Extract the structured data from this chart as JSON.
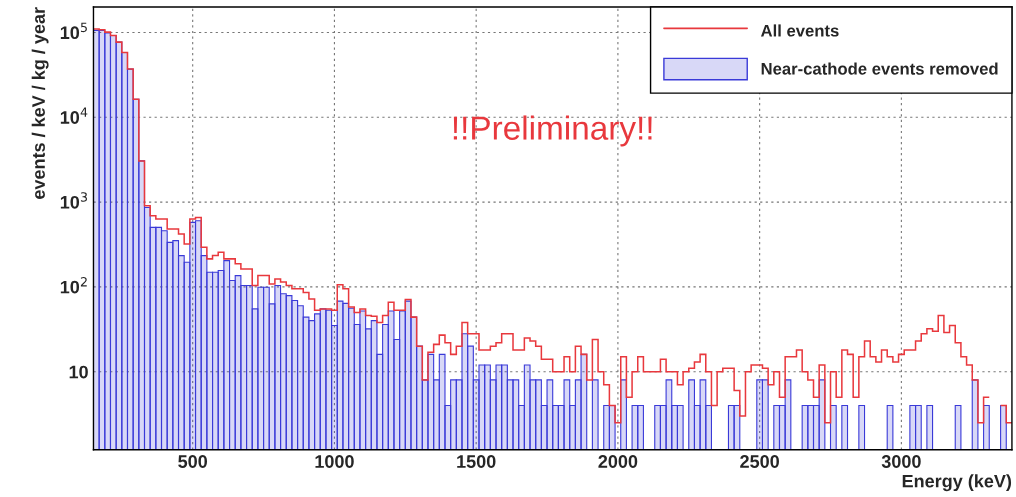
{
  "chart_data": {
    "type": "histogram",
    "xlabel": "Energy (keV)",
    "ylabel": "events / keV / kg / year",
    "annotations": [
      "!!Preliminary!!"
    ],
    "bins": [
      150,
      170,
      190,
      210,
      230,
      250,
      270,
      290,
      310,
      330,
      350,
      370,
      390,
      410,
      430,
      450,
      470,
      490,
      510,
      530,
      550,
      570,
      590,
      610,
      630,
      650,
      670,
      690,
      710,
      730,
      750,
      770,
      790,
      810,
      830,
      850,
      870,
      890,
      910,
      930,
      950,
      970,
      990,
      1010,
      1030,
      1050,
      1070,
      1090,
      1110,
      1130,
      1150,
      1170,
      1190,
      1210,
      1230,
      1250,
      1270,
      1290,
      1310,
      1330,
      1350,
      1370,
      1390,
      1410,
      1430,
      1450,
      1470,
      1490,
      1510,
      1530,
      1550,
      1570,
      1590,
      1610,
      1630,
      1650,
      1670,
      1690,
      1710,
      1730,
      1750,
      1770,
      1790,
      1810,
      1830,
      1850,
      1870,
      1890,
      1910,
      1930,
      1950,
      1970,
      1990,
      2010,
      2030,
      2050,
      2070,
      2090,
      2110,
      2130,
      2150,
      2170,
      2190,
      2210,
      2230,
      2250,
      2270,
      2290,
      2310,
      2330,
      2350,
      2370,
      2390,
      2410,
      2430,
      2450,
      2470,
      2490,
      2510,
      2530,
      2550,
      2570,
      2590,
      2610,
      2630,
      2650,
      2670,
      2690,
      2710,
      2730,
      2750,
      2770,
      2790,
      2810,
      2830,
      2850,
      2870,
      2890,
      2910,
      2930,
      2950,
      2970,
      2990,
      3010,
      3030,
      3050,
      3070,
      3090,
      3110,
      3130,
      3150,
      3170,
      3190,
      3210,
      3230,
      3250,
      3270,
      3290,
      3310,
      3330,
      3350,
      3370,
      3390
    ],
    "series": [
      {
        "name": "All events",
        "type": "step",
        "color": "#e8383d",
        "x": [
          160,
          180,
          200,
          220,
          240,
          260,
          280,
          300,
          320,
          340,
          360,
          380,
          400,
          420,
          440,
          460,
          480,
          500,
          520,
          540,
          560,
          580,
          600,
          620,
          640,
          660,
          680,
          700,
          720,
          740,
          760,
          780,
          800,
          820,
          840,
          860,
          880,
          900,
          920,
          940,
          960,
          980,
          1000,
          1020,
          1040,
          1060,
          1080,
          1100,
          1120,
          1140,
          1160,
          1180,
          1200,
          1220,
          1240,
          1260,
          1280,
          1300,
          1320,
          1340,
          1360,
          1380,
          1400,
          1420,
          1440,
          1460,
          1480,
          1500,
          1520,
          1540,
          1560,
          1580,
          1600,
          1620,
          1640,
          1660,
          1680,
          1700,
          1720,
          1740,
          1760,
          1780,
          1800,
          1820,
          1840,
          1860,
          1880,
          1900,
          1920,
          1940,
          1960,
          1980,
          2000,
          2020,
          2040,
          2060,
          2080,
          2100,
          2120,
          2140,
          2160,
          2180,
          2200,
          2220,
          2240,
          2260,
          2280,
          2300,
          2320,
          2340,
          2360,
          2380,
          2400,
          2420,
          2440,
          2460,
          2480,
          2500,
          2520,
          2540,
          2560,
          2580,
          2600,
          2620,
          2640,
          2660,
          2680,
          2700,
          2720,
          2740,
          2760,
          2780,
          2800,
          2820,
          2840,
          2860,
          2880,
          2900,
          2920,
          2940,
          2960,
          2980,
          3000,
          3020,
          3040,
          3060,
          3080,
          3100,
          3120,
          3140,
          3160,
          3180,
          3200,
          3220,
          3240,
          3260,
          3280,
          3300,
          3320,
          3340,
          3360,
          3380
        ],
        "values": [
          110000,
          108000,
          101000,
          92000,
          77000,
          58000,
          37000,
          16300,
          3060,
          906,
          690,
          631,
          631,
          481,
          481,
          420,
          320,
          631,
          660,
          293,
          214,
          234,
          256,
          214,
          214,
          187,
          163,
          163,
          104,
          136,
          136,
          108,
          124,
          114,
          104,
          95,
          95,
          86,
          72,
          53,
          55,
          55,
          53,
          106,
          95,
          58,
          50,
          55,
          46,
          45,
          38,
          46,
          66,
          53,
          53,
          71,
          44,
          20,
          8,
          17,
          21,
          27,
          22,
          16,
          20,
          38,
          28,
          28,
          18,
          18,
          20,
          22,
          28,
          28,
          18,
          18,
          25,
          23,
          20,
          14,
          14,
          10,
          10,
          15,
          10,
          20,
          16,
          8,
          24,
          10,
          7,
          4,
          2.5,
          15,
          5,
          10,
          15,
          10,
          10,
          10,
          14,
          10,
          10,
          7,
          10,
          11,
          13,
          16,
          10,
          4,
          10,
          11,
          11,
          6,
          3,
          10,
          12,
          12,
          11,
          7,
          10,
          5,
          15,
          15,
          18,
          10,
          8,
          5,
          12,
          2.5,
          10,
          5,
          18,
          16,
          5,
          15,
          23,
          15,
          13,
          18,
          15,
          13,
          16,
          18,
          18,
          23,
          28,
          32,
          30,
          46,
          29,
          35,
          22,
          15,
          12,
          8,
          2.5,
          5,
          null,
          null,
          4,
          2.5
        ]
      },
      {
        "name": "Near-cathode events removed",
        "color": "#3a3ad8",
        "values": [
          106000,
          106000,
          99000,
          92000,
          77000,
          58000,
          37000,
          16300,
          3060,
          865,
          504,
          504,
          460,
          335,
          351,
          234,
          195,
          576,
          603,
          234,
          149,
          149,
          156,
          204,
          119,
          136,
          104,
          104,
          55,
          99,
          99,
          63,
          104,
          83,
          79,
          69,
          60,
          44,
          40,
          48,
          55,
          53,
          35,
          68,
          64,
          56,
          36,
          52,
          32,
          40,
          16,
          36,
          52,
          24,
          52,
          68,
          44,
          20,
          8,
          16,
          8,
          16,
          4,
          8,
          8,
          28,
          20,
          8,
          12,
          12,
          8,
          12,
          12,
          8,
          8,
          4,
          12,
          8,
          8,
          4,
          8,
          4,
          4,
          8,
          4,
          8,
          16,
          null,
          8,
          null,
          4,
          4,
          null,
          8,
          null,
          4,
          4,
          null,
          null,
          4,
          4,
          8,
          4,
          4,
          null,
          8,
          4,
          8,
          4,
          null,
          null,
          null,
          4,
          4,
          null,
          null,
          null,
          8,
          8,
          null,
          4,
          4,
          8,
          null,
          null,
          4,
          4,
          4,
          8,
          null,
          4,
          null,
          4,
          null,
          null,
          4,
          null,
          null,
          null,
          null,
          4,
          null,
          null,
          null,
          4,
          4,
          null,
          4,
          null,
          null,
          null,
          null,
          4,
          null,
          null,
          8,
          null,
          4,
          null,
          null,
          4,
          null
        ]
      }
    ],
    "log": "y",
    "xlim": [
      150,
      3390
    ],
    "ylim": [
      1.2,
      200000
    ],
    "xticks": [
      500,
      1000,
      1500,
      2000,
      2500,
      3000
    ],
    "yticks": [
      10,
      {
        "value": 100,
        "label": "10$^{2}$"
      },
      {
        "value": 1000,
        "label": "10$^{3}$"
      },
      {
        "value": 10000,
        "label": "10$^{4}$"
      },
      {
        "value": 100000,
        "label": "10$^{5}$"
      }
    ],
    "grid": true,
    "legend": "top right"
  }
}
